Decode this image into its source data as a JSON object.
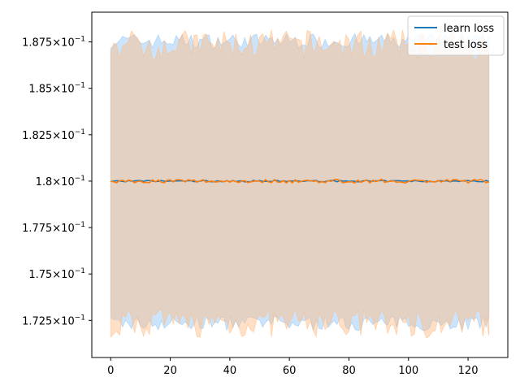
{
  "chart_data": {
    "type": "line",
    "title": "",
    "xlabel": "",
    "ylabel": "",
    "xlim": [
      -6.35,
      133.35
    ],
    "ylim": [
      0.1705,
      0.1891
    ],
    "x_ticks": [
      0,
      20,
      40,
      60,
      80,
      100,
      120
    ],
    "x_tick_labels": [
      "0",
      "20",
      "40",
      "60",
      "80",
      "100",
      "120"
    ],
    "y_ticks": [
      0.1725,
      0.175,
      0.1775,
      0.18,
      0.1825,
      0.185,
      0.1875
    ],
    "y_tick_mantissas": [
      "1.725",
      "1.75",
      "1.775",
      "1.8",
      "1.825",
      "1.85",
      "1.875"
    ],
    "y_tick_base": "10",
    "y_tick_exp": "−1",
    "y_tick_times": "×",
    "grid": false,
    "legend_position": "top-right",
    "series": [
      {
        "name": "learn loss",
        "color": "#1f77b4",
        "band_color": "#8fc3f7",
        "x_start": 0,
        "x_end": 127,
        "mean": 0.18,
        "mean_jitter": 4e-05,
        "band_upper": 0.18755,
        "band_lower": 0.17235,
        "band_jitter": 0.0004
      },
      {
        "name": "test loss",
        "color": "#ff7f0e",
        "band_color": "#ffbb80",
        "x_start": 0,
        "x_end": 127,
        "mean": 0.18,
        "mean_jitter": 0.0001,
        "band_upper": 0.18735,
        "band_lower": 0.17235,
        "band_jitter": 0.0008
      }
    ]
  }
}
